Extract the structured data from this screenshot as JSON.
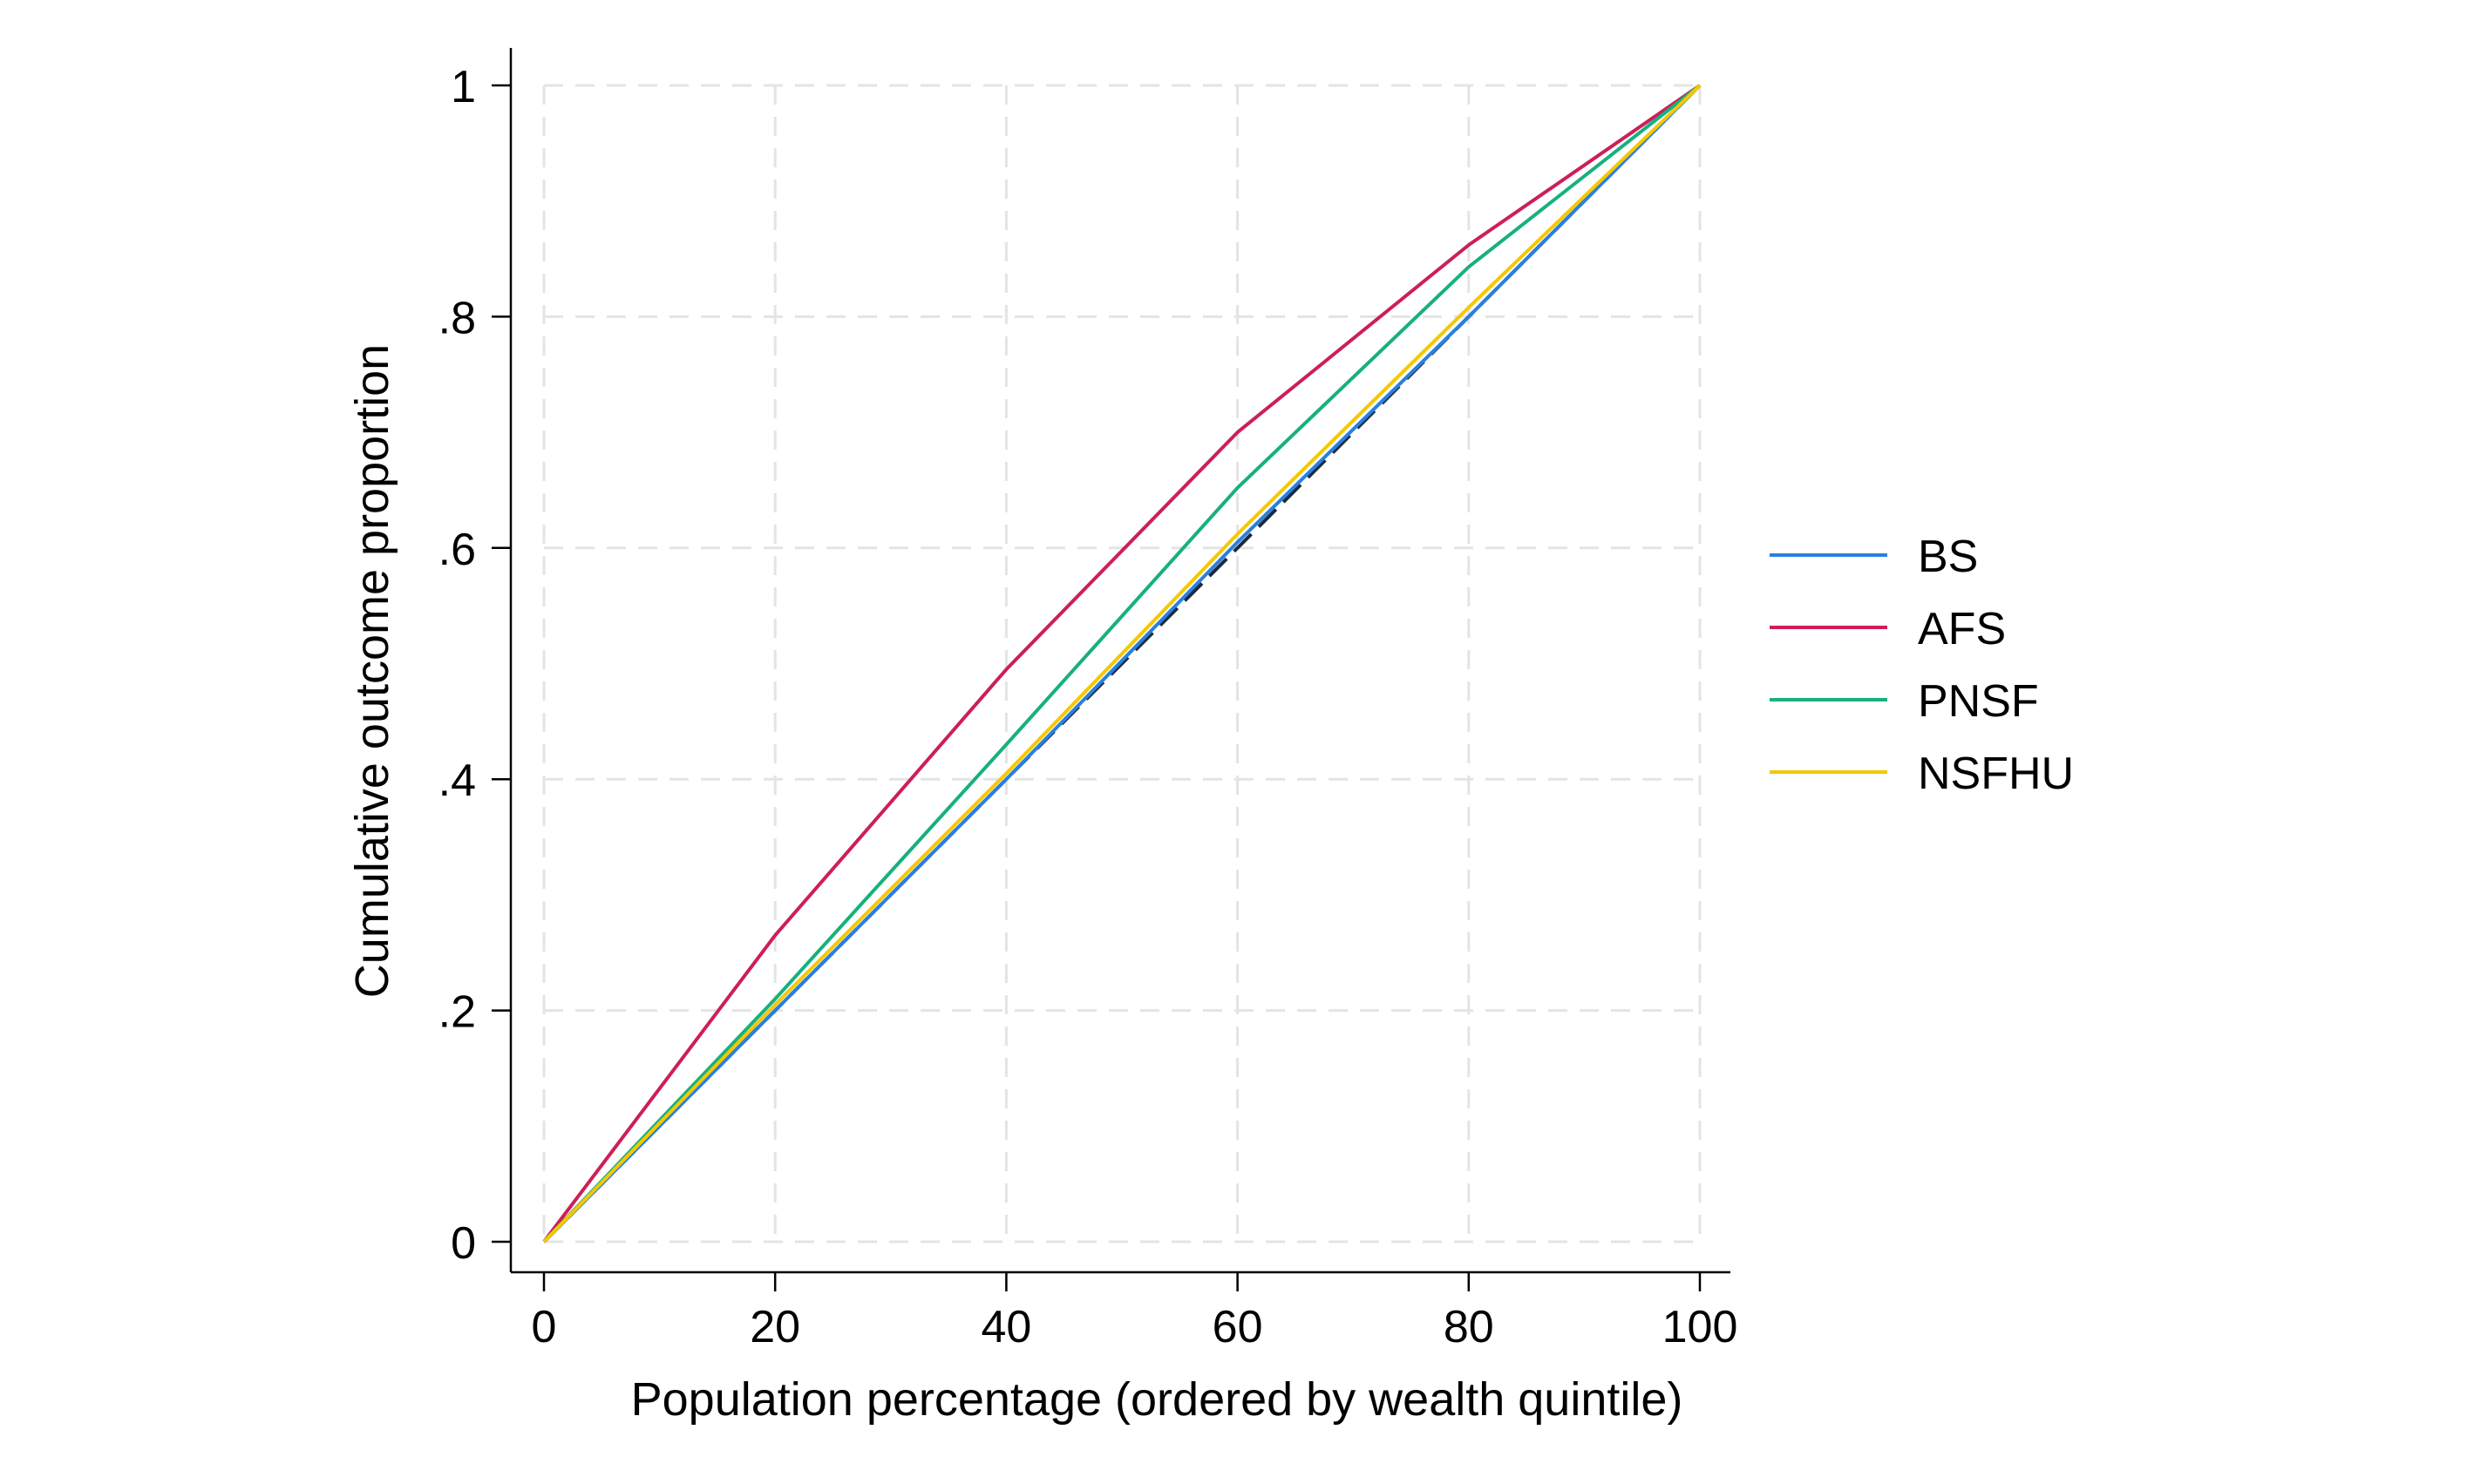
{
  "chart_data": {
    "type": "line",
    "xlabel": "Population percentage (ordered by wealth quintile)",
    "ylabel": "Cumulative outcome proportion",
    "xlim": [
      0,
      100
    ],
    "ylim": [
      0,
      1
    ],
    "x_ticks": [
      0,
      20,
      40,
      60,
      80,
      100
    ],
    "y_ticks": [
      0,
      0.2,
      0.4,
      0.6,
      0.8,
      1
    ],
    "x_tick_labels": [
      "0",
      "20",
      "40",
      "60",
      "80",
      "100"
    ],
    "y_tick_labels": [
      "0",
      ".2",
      ".4",
      ".6",
      ".8",
      "1"
    ],
    "grid": true,
    "legend_position": "right",
    "x": [
      0,
      20,
      40,
      60,
      80,
      100
    ],
    "equality_line": {
      "x": [
        0,
        100
      ],
      "y": [
        0,
        1
      ],
      "style": "dashed",
      "color": "#1a2a3a"
    },
    "series": [
      {
        "name": "BS",
        "color": "#2a7fe0",
        "values": [
          0,
          0.2,
          0.4,
          0.605,
          0.8,
          1.0
        ]
      },
      {
        "name": "AFS",
        "color": "#cc1f5a",
        "values": [
          0,
          0.265,
          0.495,
          0.7,
          0.862,
          1.0
        ]
      },
      {
        "name": "PNSF",
        "color": "#17b07f",
        "values": [
          0,
          0.21,
          0.43,
          0.652,
          0.843,
          1.0
        ]
      },
      {
        "name": "NSFHU",
        "color": "#f5c800",
        "values": [
          0,
          0.205,
          0.405,
          0.612,
          0.808,
          1.0
        ]
      }
    ]
  }
}
